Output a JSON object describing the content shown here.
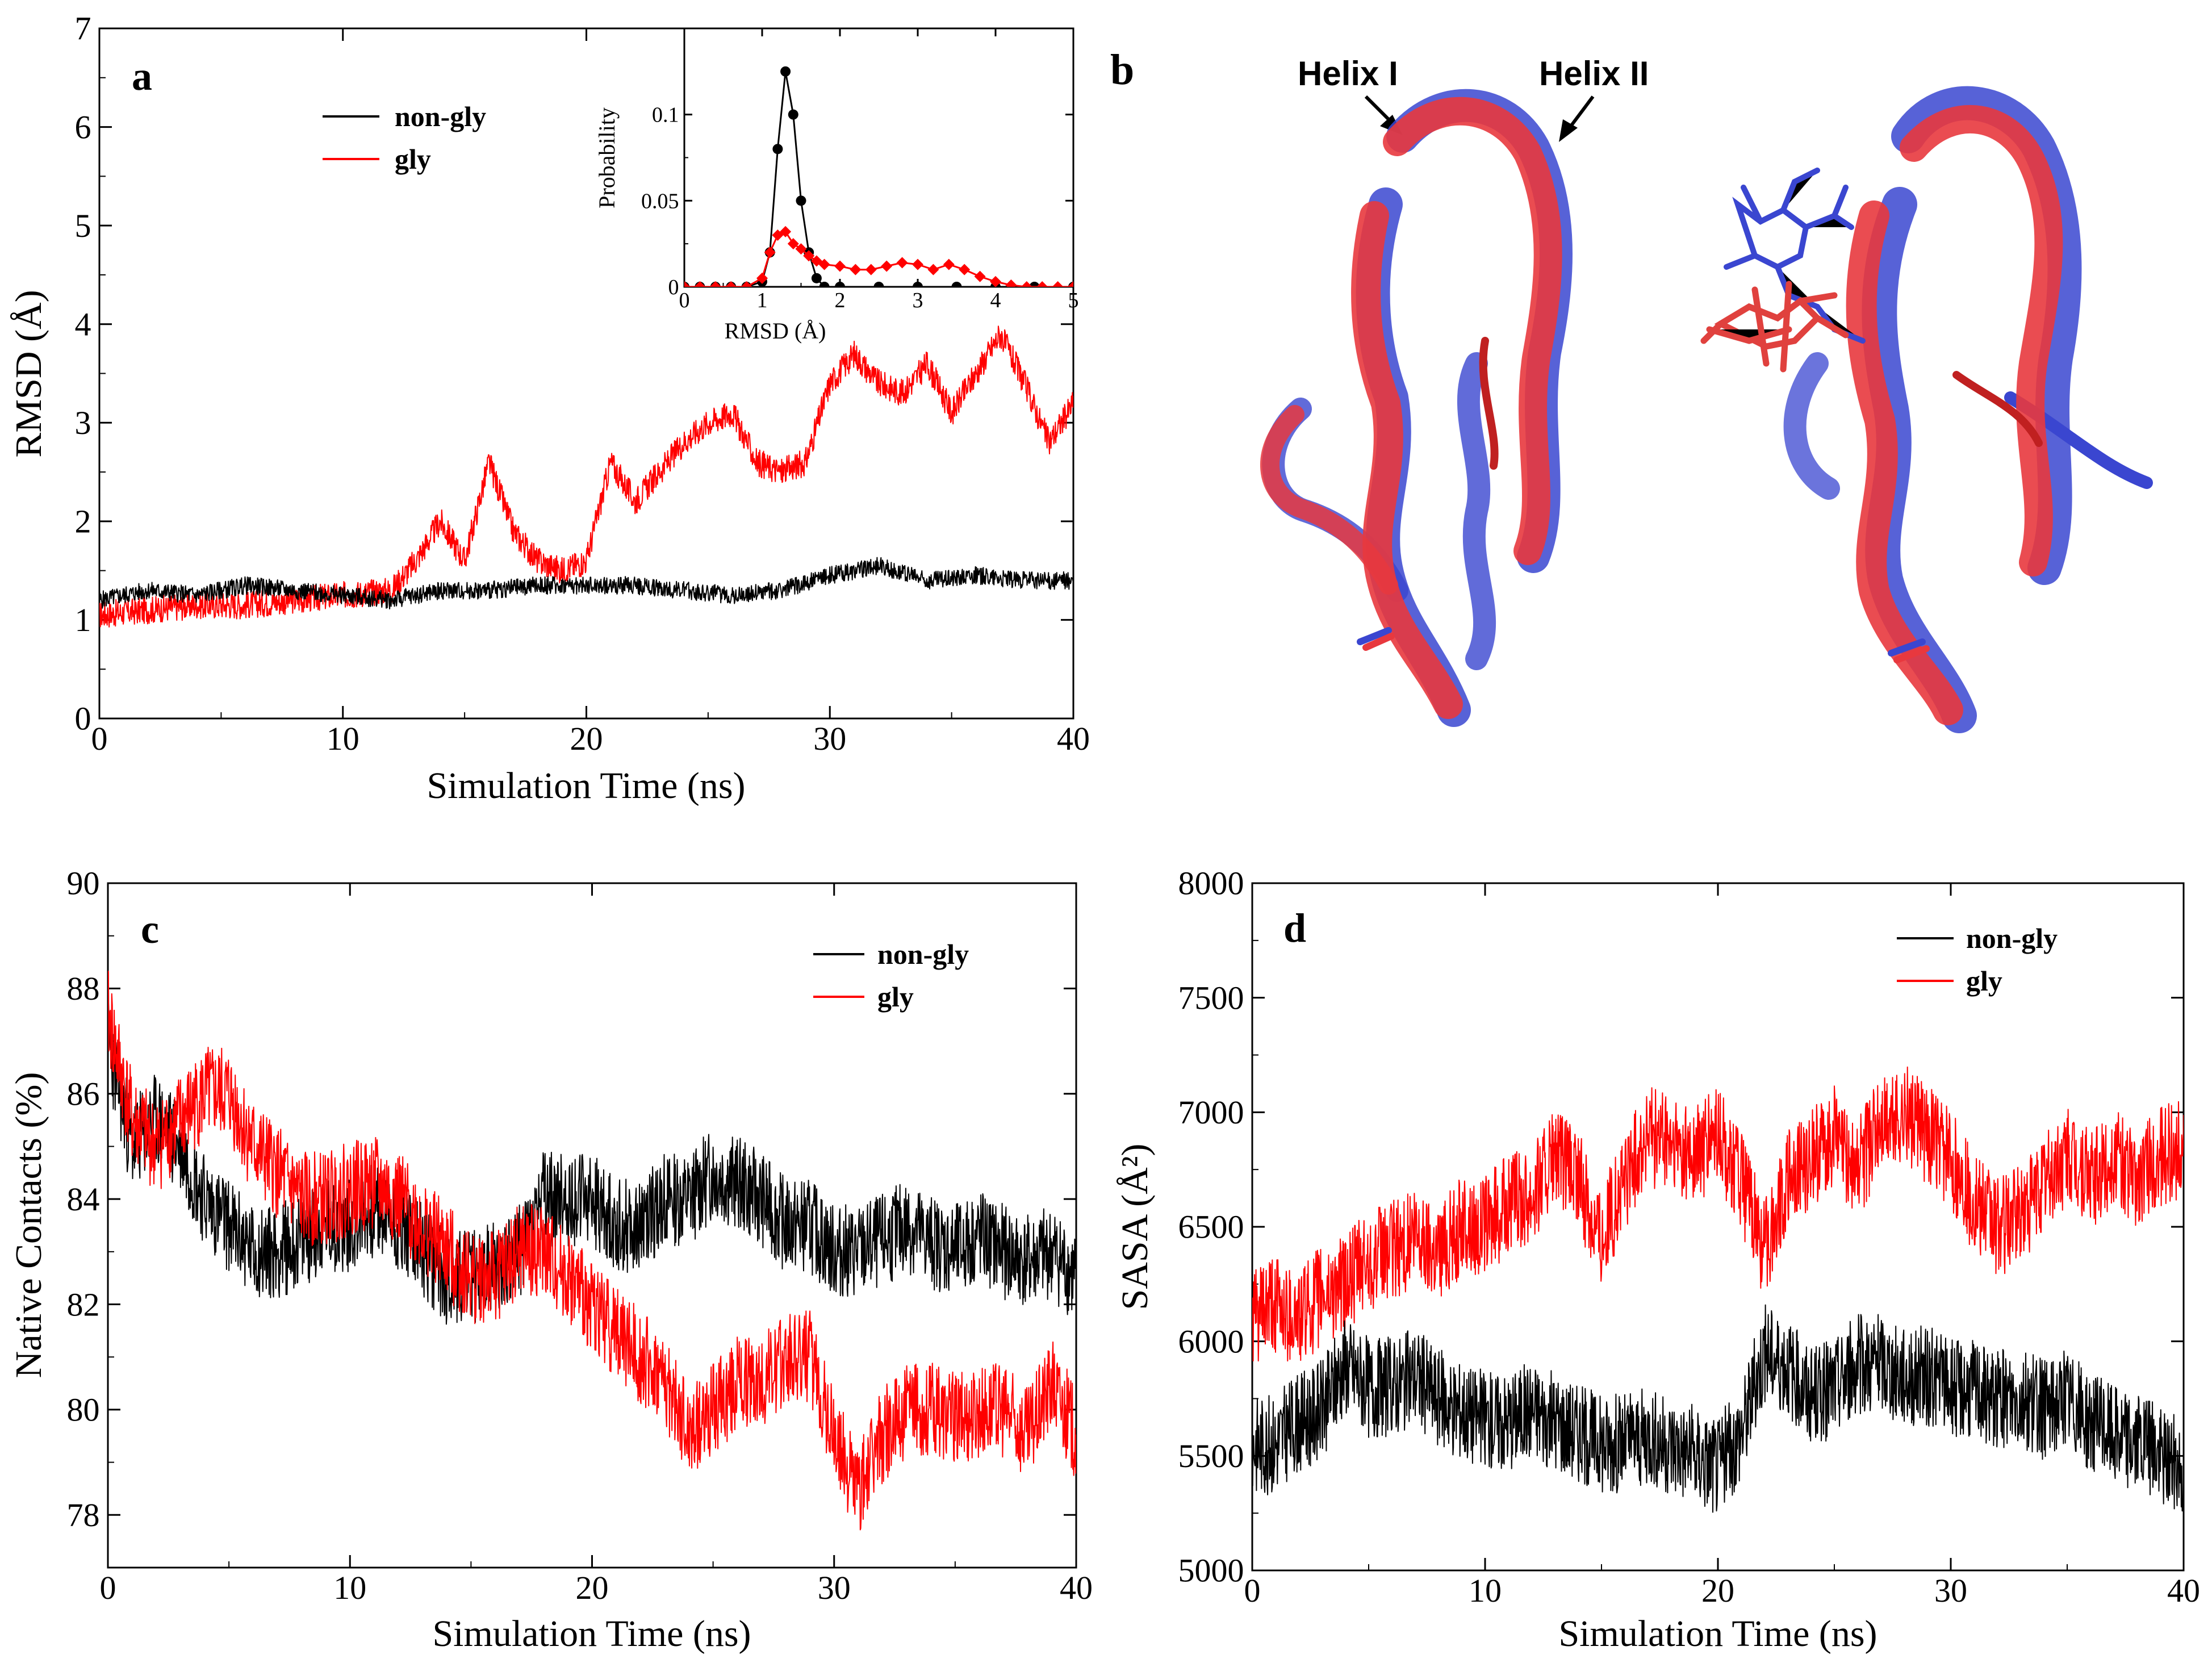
{
  "panel_labels": {
    "a": "a",
    "b": "b",
    "c": "c",
    "d": "d"
  },
  "colors": {
    "non_gly": "#000000",
    "gly": "#ff0000",
    "helix_blue": "#3a46d0",
    "helix_red": "#e8383e"
  },
  "structure": {
    "helix1_label": "Helix I",
    "helix2_label": "Helix II"
  },
  "chart_data": [
    {
      "id": "a",
      "type": "line",
      "xlabel": "Simulation Time (ns)",
      "ylabel": "RMSD (Å)",
      "xlim": [
        0,
        40
      ],
      "ylim": [
        0,
        7
      ],
      "xticks": [
        0,
        10,
        20,
        30,
        40
      ],
      "yticks": [
        0,
        1,
        2,
        3,
        4,
        5,
        6,
        7
      ],
      "legend": "top-left",
      "series": [
        {
          "name": "non-gly",
          "color": "#000000",
          "x": [
            0,
            2,
            4,
            6,
            8,
            10,
            12,
            14,
            16,
            18,
            20,
            22,
            24,
            26,
            28,
            30,
            32,
            34,
            36,
            38,
            40
          ],
          "values": [
            1.2,
            1.3,
            1.25,
            1.35,
            1.3,
            1.25,
            1.2,
            1.3,
            1.3,
            1.35,
            1.35,
            1.35,
            1.3,
            1.25,
            1.3,
            1.45,
            1.55,
            1.4,
            1.45,
            1.4,
            1.4
          ]
        },
        {
          "name": "gly",
          "color": "#ff0000",
          "x": [
            0,
            2,
            4,
            6,
            8,
            10,
            12,
            13,
            14,
            15,
            16,
            17,
            18,
            19,
            20,
            21,
            22,
            23,
            24,
            25,
            26,
            27,
            28,
            29,
            30,
            31,
            32,
            33,
            34,
            35,
            36,
            37,
            38,
            39,
            40
          ],
          "values": [
            1.05,
            1.1,
            1.15,
            1.15,
            1.2,
            1.25,
            1.3,
            1.6,
            2.0,
            1.6,
            2.6,
            1.9,
            1.6,
            1.5,
            1.6,
            2.6,
            2.2,
            2.5,
            2.8,
            3.0,
            3.1,
            2.6,
            2.5,
            2.6,
            3.4,
            3.7,
            3.4,
            3.3,
            3.6,
            3.1,
            3.5,
            3.9,
            3.4,
            2.8,
            3.2
          ]
        }
      ],
      "inset": {
        "type": "scatter",
        "xlabel": "RMSD (Å)",
        "ylabel": "Probability",
        "xlim": [
          0,
          5
        ],
        "ylim": [
          0,
          0.15
        ],
        "xticks": [
          0,
          1,
          2,
          3,
          4,
          5
        ],
        "yticks": [
          0,
          0.05,
          0.1
        ],
        "series": [
          {
            "name": "non-gly",
            "color": "#000000",
            "x": [
              0,
              0.2,
              0.4,
              0.6,
              0.8,
              1.0,
              1.1,
              1.2,
              1.3,
              1.4,
              1.5,
              1.6,
              1.7,
              1.8,
              2.0,
              2.5,
              3.0,
              3.5,
              4.0,
              4.5,
              5.0
            ],
            "values": [
              0,
              0,
              0,
              0,
              0,
              0.003,
              0.02,
              0.08,
              0.125,
              0.1,
              0.05,
              0.02,
              0.005,
              0,
              0,
              0,
              0,
              0,
              0,
              0,
              0
            ]
          },
          {
            "name": "gly",
            "color": "#ff0000",
            "x": [
              0,
              0.2,
              0.4,
              0.6,
              0.8,
              1.0,
              1.1,
              1.2,
              1.3,
              1.4,
              1.5,
              1.6,
              1.7,
              1.8,
              2.0,
              2.2,
              2.4,
              2.6,
              2.8,
              3.0,
              3.2,
              3.4,
              3.6,
              3.8,
              4.0,
              4.2,
              4.4,
              4.6,
              4.8,
              5.0
            ],
            "values": [
              0,
              0,
              0,
              0,
              0,
              0.005,
              0.02,
              0.03,
              0.032,
              0.025,
              0.022,
              0.018,
              0.015,
              0.013,
              0.012,
              0.01,
              0.01,
              0.012,
              0.014,
              0.013,
              0.01,
              0.013,
              0.01,
              0.006,
              0.003,
              0.001,
              0,
              0,
              0,
              0
            ]
          }
        ]
      }
    },
    {
      "id": "c",
      "type": "line",
      "xlabel": "Simulation Time (ns)",
      "ylabel": "Native Contacts (%)",
      "xlim": [
        0,
        40
      ],
      "ylim": [
        77,
        90
      ],
      "xticks": [
        0,
        10,
        20,
        30,
        40
      ],
      "yticks": [
        78,
        80,
        82,
        84,
        86,
        88,
        90
      ],
      "legend": "top-right",
      "series": [
        {
          "name": "non-gly",
          "color": "#000000",
          "x": [
            0,
            1,
            2,
            3,
            4,
            5,
            6,
            7,
            8,
            9,
            10,
            11,
            12,
            13,
            14,
            15,
            16,
            17,
            18,
            19,
            20,
            21,
            22,
            23,
            24,
            25,
            26,
            27,
            28,
            29,
            30,
            31,
            32,
            33,
            34,
            35,
            36,
            37,
            38,
            39,
            40
          ],
          "values": [
            87,
            85,
            85.5,
            85,
            84,
            83.5,
            83,
            83,
            83.2,
            83.5,
            83.5,
            83.8,
            83.5,
            83,
            82.5,
            82.5,
            82.7,
            83,
            84,
            84,
            84,
            83.5,
            83.5,
            84,
            84,
            84.5,
            84.3,
            84,
            83.5,
            83.5,
            83,
            83,
            83.2,
            83.5,
            83.2,
            83,
            83.3,
            83,
            82.8,
            83,
            82.5
          ]
        },
        {
          "name": "gly",
          "color": "#ff0000",
          "x": [
            0,
            1,
            2,
            3,
            4,
            5,
            6,
            7,
            8,
            9,
            10,
            11,
            12,
            13,
            14,
            15,
            16,
            17,
            18,
            19,
            20,
            21,
            22,
            23,
            24,
            25,
            26,
            27,
            28,
            29,
            30,
            31,
            32,
            33,
            34,
            35,
            36,
            37,
            38,
            39,
            40
          ],
          "values": [
            87.5,
            85.5,
            85,
            85.5,
            86,
            86,
            85,
            84.5,
            84,
            84,
            84.2,
            84.3,
            84,
            83.5,
            83,
            82.5,
            82.5,
            83,
            83,
            82.5,
            82,
            81.5,
            81,
            80.5,
            79.5,
            80,
            80.5,
            80.5,
            81,
            81,
            79.5,
            78.5,
            79.5,
            80,
            80,
            79.8,
            80,
            80,
            79.5,
            80.5,
            79.5
          ]
        }
      ]
    },
    {
      "id": "d",
      "type": "line",
      "xlabel": "Simulation Time (ns)",
      "ylabel": "SASA (Å²)",
      "xlim": [
        0,
        40
      ],
      "ylim": [
        5000,
        8000
      ],
      "xticks": [
        0,
        10,
        20,
        30,
        40
      ],
      "yticks": [
        5000,
        5500,
        6000,
        6500,
        7000,
        7500,
        8000
      ],
      "legend": "top-right",
      "series": [
        {
          "name": "non-gly",
          "color": "#000000",
          "x": [
            0,
            1,
            2,
            3,
            4,
            5,
            6,
            7,
            8,
            9,
            10,
            11,
            12,
            13,
            14,
            15,
            16,
            17,
            18,
            19,
            20,
            21,
            22,
            23,
            24,
            25,
            26,
            27,
            28,
            29,
            30,
            31,
            32,
            33,
            34,
            35,
            36,
            37,
            38,
            39,
            40
          ],
          "values": [
            5550,
            5550,
            5650,
            5700,
            5900,
            5800,
            5800,
            5850,
            5750,
            5700,
            5650,
            5650,
            5700,
            5650,
            5600,
            5550,
            5550,
            5600,
            5550,
            5500,
            5450,
            5600,
            5950,
            5900,
            5750,
            5800,
            5900,
            5900,
            5850,
            5850,
            5800,
            5800,
            5750,
            5750,
            5700,
            5750,
            5650,
            5600,
            5550,
            5500,
            5450
          ]
        },
        {
          "name": "gly",
          "color": "#ff0000",
          "x": [
            0,
            1,
            2,
            3,
            4,
            5,
            6,
            7,
            8,
            9,
            10,
            11,
            12,
            13,
            14,
            15,
            16,
            17,
            18,
            19,
            20,
            21,
            22,
            23,
            24,
            25,
            26,
            27,
            28,
            29,
            30,
            31,
            32,
            33,
            34,
            35,
            36,
            37,
            38,
            39,
            40
          ],
          "values": [
            6100,
            6150,
            6100,
            6200,
            6250,
            6350,
            6400,
            6450,
            6400,
            6500,
            6500,
            6600,
            6650,
            6800,
            6700,
            6450,
            6700,
            6900,
            6850,
            6800,
            6900,
            6700,
            6400,
            6700,
            6800,
            6900,
            6750,
            6950,
            7000,
            6900,
            6800,
            6600,
            6500,
            6550,
            6700,
            6800,
            6700,
            6800,
            6700,
            6800,
            6850
          ]
        }
      ]
    }
  ]
}
